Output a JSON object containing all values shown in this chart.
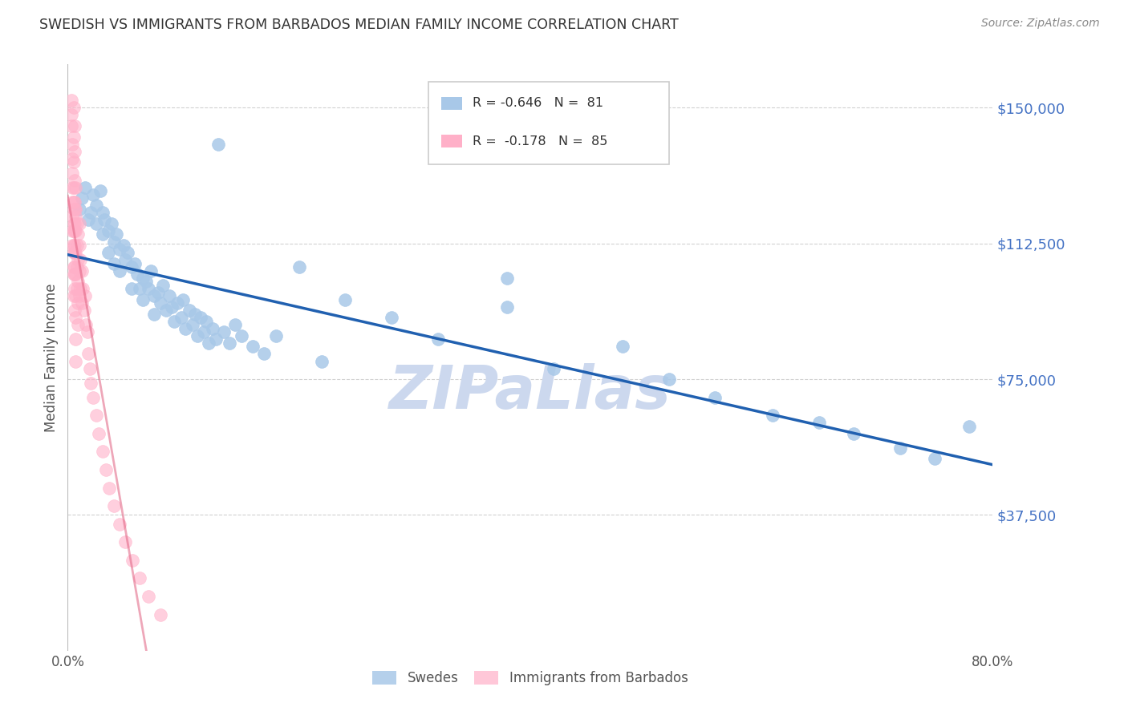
{
  "title": "SWEDISH VS IMMIGRANTS FROM BARBADOS MEDIAN FAMILY INCOME CORRELATION CHART",
  "source": "Source: ZipAtlas.com",
  "ylabel": "Median Family Income",
  "ytick_labels": [
    "$150,000",
    "$112,500",
    "$75,000",
    "$37,500"
  ],
  "ytick_values": [
    150000,
    112500,
    75000,
    37500
  ],
  "ylim": [
    0,
    162000
  ],
  "xlim": [
    0.0,
    0.8
  ],
  "blue_color": "#a8c8e8",
  "pink_color": "#ffb0c8",
  "blue_line_color": "#2060b0",
  "pink_line_color": "#e06080",
  "title_color": "#333333",
  "axis_label_color": "#555555",
  "ytick_color": "#4472c4",
  "xtick_color": "#555555",
  "watermark_color": "#ccd8ee",
  "legend_box_color": "#dddddd",
  "swedes_x": [
    0.01,
    0.012,
    0.015,
    0.018,
    0.02,
    0.022,
    0.025,
    0.025,
    0.028,
    0.03,
    0.03,
    0.032,
    0.035,
    0.035,
    0.038,
    0.04,
    0.04,
    0.042,
    0.045,
    0.045,
    0.048,
    0.05,
    0.052,
    0.055,
    0.055,
    0.058,
    0.06,
    0.062,
    0.065,
    0.065,
    0.068,
    0.07,
    0.072,
    0.075,
    0.075,
    0.078,
    0.08,
    0.082,
    0.085,
    0.088,
    0.09,
    0.092,
    0.095,
    0.098,
    0.1,
    0.102,
    0.105,
    0.108,
    0.11,
    0.112,
    0.115,
    0.118,
    0.12,
    0.122,
    0.125,
    0.128,
    0.13,
    0.135,
    0.14,
    0.145,
    0.15,
    0.16,
    0.17,
    0.18,
    0.2,
    0.22,
    0.24,
    0.28,
    0.32,
    0.38,
    0.42,
    0.48,
    0.52,
    0.56,
    0.61,
    0.65,
    0.68,
    0.72,
    0.75,
    0.78,
    0.38
  ],
  "swedes_y": [
    122000,
    125000,
    128000,
    119000,
    121000,
    126000,
    123000,
    118000,
    127000,
    121000,
    115000,
    119000,
    116000,
    110000,
    118000,
    113000,
    107000,
    115000,
    111000,
    105000,
    112000,
    108000,
    110000,
    106000,
    100000,
    107000,
    104000,
    100000,
    103000,
    97000,
    102000,
    100000,
    105000,
    98000,
    93000,
    99000,
    96000,
    101000,
    94000,
    98000,
    95000,
    91000,
    96000,
    92000,
    97000,
    89000,
    94000,
    90000,
    93000,
    87000,
    92000,
    88000,
    91000,
    85000,
    89000,
    86000,
    140000,
    88000,
    85000,
    90000,
    87000,
    84000,
    82000,
    87000,
    106000,
    80000,
    97000,
    92000,
    86000,
    95000,
    78000,
    84000,
    75000,
    70000,
    65000,
    63000,
    60000,
    56000,
    53000,
    62000,
    103000
  ],
  "barbados_x": [
    0.003,
    0.003,
    0.003,
    0.004,
    0.004,
    0.004,
    0.004,
    0.004,
    0.004,
    0.004,
    0.004,
    0.005,
    0.005,
    0.005,
    0.005,
    0.005,
    0.005,
    0.005,
    0.005,
    0.005,
    0.005,
    0.005,
    0.005,
    0.005,
    0.006,
    0.006,
    0.006,
    0.006,
    0.006,
    0.006,
    0.006,
    0.006,
    0.006,
    0.006,
    0.006,
    0.006,
    0.006,
    0.007,
    0.007,
    0.007,
    0.007,
    0.007,
    0.007,
    0.007,
    0.007,
    0.007,
    0.007,
    0.008,
    0.008,
    0.008,
    0.008,
    0.009,
    0.009,
    0.009,
    0.009,
    0.009,
    0.01,
    0.01,
    0.01,
    0.01,
    0.011,
    0.011,
    0.012,
    0.012,
    0.013,
    0.014,
    0.015,
    0.016,
    0.017,
    0.018,
    0.019,
    0.02,
    0.022,
    0.025,
    0.027,
    0.03,
    0.033,
    0.036,
    0.04,
    0.045,
    0.05,
    0.056,
    0.062,
    0.07,
    0.08
  ],
  "barbados_y": [
    152000,
    148000,
    145000,
    140000,
    136000,
    132000,
    128000,
    124000,
    120000,
    116000,
    112000,
    150000,
    142000,
    135000,
    128000,
    122000,
    116000,
    110000,
    104000,
    98000,
    124000,
    118000,
    112000,
    106000,
    145000,
    138000,
    130000,
    124000,
    118000,
    112000,
    106000,
    100000,
    94000,
    122000,
    116000,
    110000,
    104000,
    128000,
    122000,
    116000,
    110000,
    104000,
    98000,
    92000,
    86000,
    80000,
    120000,
    118000,
    112000,
    106000,
    100000,
    115000,
    108000,
    102000,
    96000,
    90000,
    118000,
    112000,
    105000,
    98000,
    108000,
    100000,
    105000,
    96000,
    100000,
    94000,
    98000,
    90000,
    88000,
    82000,
    78000,
    74000,
    70000,
    65000,
    60000,
    55000,
    50000,
    45000,
    40000,
    35000,
    30000,
    25000,
    20000,
    15000,
    10000
  ]
}
